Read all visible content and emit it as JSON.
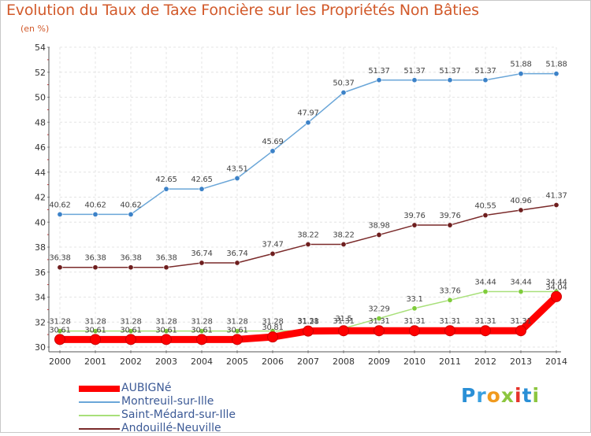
{
  "title": "Evolution du Taux de Taxe Foncière sur les Propriétés Non Bâties",
  "subtitle": "(en %)",
  "logo": {
    "letters": [
      {
        "ch": "P",
        "color": "#2a8fd6"
      },
      {
        "ch": "r",
        "color": "#3aa0e0"
      },
      {
        "ch": "o",
        "color": "#f09a1e"
      },
      {
        "ch": "x",
        "color": "#8cc63f"
      },
      {
        "ch": "i",
        "color": "#e6332a"
      },
      {
        "ch": "t",
        "color": "#2a8fd6"
      },
      {
        "ch": "i",
        "color": "#8cc63f"
      }
    ]
  },
  "chart_data": {
    "type": "line",
    "x": [
      "2000",
      "2001",
      "2002",
      "2003",
      "2004",
      "2005",
      "2006",
      "2007",
      "2008",
      "2009",
      "2010",
      "2011",
      "2012",
      "2013",
      "2014"
    ],
    "ylim": [
      30,
      54
    ],
    "yticks": [
      30,
      32,
      34,
      36,
      38,
      40,
      42,
      44,
      46,
      48,
      50,
      52,
      54
    ],
    "grid": true,
    "legend_position": "bottom-left",
    "series": [
      {
        "name": "AUBIGNé",
        "color": "#ff0000",
        "values": [
          30.61,
          30.61,
          30.61,
          30.61,
          30.61,
          30.61,
          30.81,
          31.28,
          31.31,
          31.31,
          31.31,
          31.31,
          31.31,
          31.31,
          34.04
        ],
        "labels": [
          "30.61",
          "30.61",
          "30.61",
          "30.61",
          "30.61",
          "30.61",
          "30.81",
          "31.28",
          "31.31",
          "31.31",
          "31.31",
          "31.31",
          "31.31",
          "31.31",
          "34.04"
        ]
      },
      {
        "name": "Montreuil-sur-Ille",
        "color": "#6aa6d8",
        "marker": "#3c82c8",
        "values": [
          40.62,
          40.62,
          40.62,
          42.65,
          42.65,
          43.51,
          45.69,
          47.97,
          50.37,
          51.37,
          51.37,
          51.37,
          51.37,
          51.88,
          51.88
        ],
        "labels": [
          "40.62",
          "40.62",
          "40.62",
          "42.65",
          "42.65",
          "43.51",
          "45.69",
          "47.97",
          "50.37",
          "51.37",
          "51.37",
          "51.37",
          "51.37",
          "51.88",
          "51.88"
        ]
      },
      {
        "name": "Saint-Médard-sur-Ille",
        "color": "#a8e07a",
        "marker": "#7fcc3a",
        "values": [
          31.28,
          31.28,
          31.28,
          31.28,
          31.28,
          31.28,
          31.28,
          31.31,
          31.5,
          32.29,
          33.1,
          33.76,
          34.44,
          34.44,
          34.44
        ],
        "labels": [
          "31.28",
          "31.28",
          "31.28",
          "31.28",
          "31.28",
          "31.28",
          "31.28",
          "31.31",
          "31.5",
          "32.29",
          "33.1",
          "33.76",
          "34.44",
          "34.44",
          "34.44"
        ]
      },
      {
        "name": "Andouillé-Neuville",
        "color": "#7a2a2a",
        "marker": "#6e1e1e",
        "values": [
          36.38,
          36.38,
          36.38,
          36.38,
          36.74,
          36.74,
          37.47,
          38.22,
          38.22,
          38.98,
          39.76,
          39.76,
          40.55,
          40.96,
          41.37
        ],
        "labels": [
          "36.38",
          "36.38",
          "36.38",
          "36.38",
          "36.74",
          "36.74",
          "37.47",
          "38.22",
          "38.22",
          "38.98",
          "39.76",
          "39.76",
          "40.55",
          "40.96",
          "41.37"
        ]
      }
    ]
  }
}
